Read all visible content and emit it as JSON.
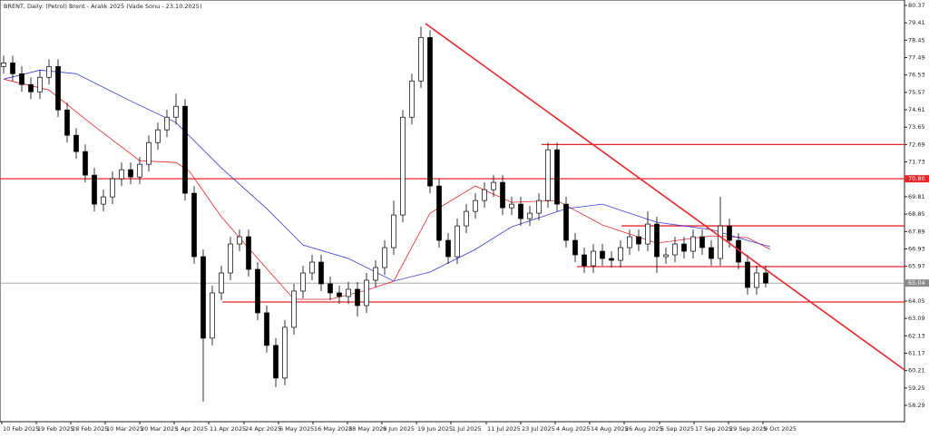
{
  "chart_data": {
    "type": "candlestick",
    "title": "BRENT, Daily: (Petrol) Brent - Aralık 2025 (Vade Sonu - 23.10.2025)",
    "xlim": [
      -0.4,
      99.3
    ],
    "ylim": [
      57.39,
      80.67
    ],
    "yticks": [
      80.37,
      79.41,
      78.45,
      77.49,
      76.53,
      75.57,
      74.61,
      73.65,
      72.69,
      71.73,
      69.81,
      68.85,
      67.89,
      66.93,
      65.97,
      64.05,
      63.09,
      62.13,
      61.17,
      60.21,
      59.25,
      58.29
    ],
    "xticks": [
      {
        "value": -0.2,
        "label": "10 Feb 2025"
      },
      {
        "value": 3.6,
        "label": "19 Feb 2025"
      },
      {
        "value": 7.4,
        "label": "28 Feb 2025"
      },
      {
        "value": 11.2,
        "label": "10 Mar 2025"
      },
      {
        "value": 15,
        "label": "20 Mar 2025"
      },
      {
        "value": 18.8,
        "label": "1 Apr 2025"
      },
      {
        "value": 22.6,
        "label": "11 Apr 2025"
      },
      {
        "value": 26.5,
        "label": "24 Apr 2025"
      },
      {
        "value": 30.3,
        "label": "6 May 2025"
      },
      {
        "value": 34.1,
        "label": "16 May 2025"
      },
      {
        "value": 37.9,
        "label": "28 May 2025"
      },
      {
        "value": 41.7,
        "label": "9 Jun 2025"
      },
      {
        "value": 45.5,
        "label": "19 Jun 2025"
      },
      {
        "value": 49.3,
        "label": "1 Jul 2025"
      },
      {
        "value": 53.2,
        "label": "11 Jul 2025"
      },
      {
        "value": 57,
        "label": "23 Jul 2025"
      },
      {
        "value": 60.8,
        "label": "4 Aug 2025"
      },
      {
        "value": 64.6,
        "label": "14 Aug 2025"
      },
      {
        "value": 68.4,
        "label": "26 Aug 2025"
      },
      {
        "value": 72.3,
        "label": "5 Sep 2025"
      },
      {
        "value": 76.1,
        "label": "17 Sep 2025"
      },
      {
        "value": 79.9,
        "label": "29 Sep 2025"
      },
      {
        "value": 83.7,
        "label": "9 Oct 2025"
      }
    ],
    "candles": [
      [
        77.0,
        77.6,
        76.6,
        77.2
      ],
      [
        77.2,
        77.6,
        76.2,
        76.6
      ],
      [
        76.6,
        77.0,
        75.6,
        76.0
      ],
      [
        76.0,
        76.4,
        75.2,
        75.6
      ],
      [
        75.6,
        76.8,
        75.2,
        76.4
      ],
      [
        76.4,
        77.4,
        76.0,
        77.0
      ],
      [
        77.0,
        77.4,
        74.2,
        74.6
      ],
      [
        74.6,
        75.0,
        72.8,
        73.2
      ],
      [
        73.2,
        73.6,
        71.9,
        72.3
      ],
      [
        72.3,
        72.7,
        70.6,
        71.0
      ],
      [
        71.0,
        71.4,
        69.0,
        69.4
      ],
      [
        69.4,
        70.2,
        69.0,
        69.8
      ],
      [
        69.8,
        71.2,
        69.4,
        70.8
      ],
      [
        70.8,
        71.7,
        70.4,
        71.3
      ],
      [
        71.3,
        71.7,
        70.5,
        70.9
      ],
      [
        70.9,
        72.0,
        70.5,
        71.6
      ],
      [
        71.6,
        73.2,
        71.2,
        72.8
      ],
      [
        72.8,
        73.9,
        72.4,
        73.5
      ],
      [
        73.5,
        74.6,
        73.1,
        74.2
      ],
      [
        74.2,
        75.5,
        73.8,
        74.8
      ],
      [
        74.8,
        75.2,
        69.6,
        70.0
      ],
      [
        70.0,
        70.4,
        66.1,
        66.5
      ],
      [
        66.5,
        66.9,
        58.5,
        62.0
      ],
      [
        62.0,
        64.9,
        61.6,
        64.5
      ],
      [
        64.5,
        66.0,
        64.1,
        65.6
      ],
      [
        65.6,
        67.6,
        65.2,
        67.2
      ],
      [
        67.2,
        68.0,
        66.8,
        67.6
      ],
      [
        67.6,
        68.0,
        65.4,
        65.8
      ],
      [
        65.8,
        66.2,
        63.0,
        63.4
      ],
      [
        63.4,
        63.8,
        61.2,
        61.6
      ],
      [
        61.6,
        62.0,
        59.3,
        59.8
      ],
      [
        59.8,
        63.0,
        59.4,
        62.6
      ],
      [
        62.6,
        65.0,
        62.2,
        64.6
      ],
      [
        64.6,
        66.0,
        64.2,
        65.6
      ],
      [
        65.6,
        66.6,
        65.2,
        66.2
      ],
      [
        66.2,
        66.6,
        64.6,
        65.0
      ],
      [
        65.0,
        65.4,
        64.1,
        64.5
      ],
      [
        64.5,
        64.9,
        63.9,
        64.3
      ],
      [
        64.3,
        65.1,
        63.9,
        64.7
      ],
      [
        64.7,
        65.1,
        63.2,
        63.8
      ],
      [
        63.8,
        65.6,
        63.4,
        65.2
      ],
      [
        65.2,
        66.3,
        64.8,
        65.9
      ],
      [
        65.9,
        67.4,
        65.5,
        67.0
      ],
      [
        67.0,
        69.6,
        66.6,
        68.8
      ],
      [
        68.8,
        74.6,
        68.4,
        74.2
      ],
      [
        74.2,
        76.6,
        73.8,
        76.2
      ],
      [
        76.2,
        79.2,
        75.8,
        78.6
      ],
      [
        78.6,
        79.0,
        70.0,
        70.4
      ],
      [
        70.4,
        70.8,
        67.0,
        67.4
      ],
      [
        67.4,
        67.8,
        66.1,
        66.5
      ],
      [
        66.5,
        68.6,
        66.1,
        68.2
      ],
      [
        68.2,
        69.4,
        67.8,
        69.0
      ],
      [
        69.0,
        70.0,
        68.6,
        69.6
      ],
      [
        69.6,
        70.6,
        69.2,
        70.2
      ],
      [
        70.2,
        71.0,
        69.8,
        70.6
      ],
      [
        70.6,
        71.0,
        68.8,
        69.2
      ],
      [
        69.2,
        69.8,
        68.8,
        69.4
      ],
      [
        69.4,
        69.8,
        68.2,
        68.6
      ],
      [
        68.6,
        69.3,
        68.2,
        68.9
      ],
      [
        68.9,
        70.0,
        68.5,
        69.6
      ],
      [
        69.6,
        72.8,
        69.2,
        72.4
      ],
      [
        72.4,
        72.8,
        69.0,
        69.4
      ],
      [
        69.4,
        69.8,
        67.0,
        67.4
      ],
      [
        67.4,
        67.8,
        66.2,
        66.6
      ],
      [
        66.6,
        67.0,
        65.6,
        66.0
      ],
      [
        66.0,
        67.2,
        65.6,
        66.8
      ],
      [
        66.8,
        67.2,
        66.0,
        66.4
      ],
      [
        66.4,
        66.8,
        65.9,
        66.3
      ],
      [
        66.3,
        67.4,
        65.9,
        67.0
      ],
      [
        67.0,
        68.0,
        66.6,
        67.6
      ],
      [
        67.6,
        68.0,
        66.8,
        67.2
      ],
      [
        67.2,
        69.0,
        66.8,
        68.3
      ],
      [
        68.3,
        68.7,
        65.6,
        66.5
      ],
      [
        66.5,
        67.0,
        66.1,
        66.6
      ],
      [
        66.6,
        67.6,
        66.2,
        67.2
      ],
      [
        67.2,
        67.6,
        66.4,
        66.8
      ],
      [
        66.8,
        68.0,
        66.4,
        67.6
      ],
      [
        67.6,
        68.0,
        66.6,
        67.0
      ],
      [
        67.0,
        67.4,
        66.0,
        66.4
      ],
      [
        66.4,
        69.8,
        66.0,
        68.2
      ],
      [
        68.2,
        68.6,
        67.0,
        67.4
      ],
      [
        67.4,
        67.8,
        65.8,
        66.2
      ],
      [
        66.2,
        66.6,
        64.4,
        64.8
      ],
      [
        64.8,
        66.0,
        64.4,
        65.6
      ],
      [
        65.6,
        66.0,
        64.8,
        65.04
      ]
    ],
    "series": [
      {
        "color": "#e8262a",
        "x": [
          0,
          5,
          10,
          15,
          19,
          20.5,
          24,
          28,
          32,
          36,
          40,
          43,
          47,
          52,
          56,
          61,
          66,
          72,
          78,
          82,
          84.5
        ],
        "values": [
          76.3,
          75.7,
          73.7,
          71.8,
          71.7,
          71.2,
          68.7,
          66.4,
          64.15,
          64.15,
          64.65,
          65.15,
          68.9,
          70.4,
          69.5,
          69.6,
          68.25,
          67.25,
          67.65,
          67.55,
          66.9
        ]
      },
      {
        "color": "#3a3ad8",
        "x": [
          0,
          4,
          8,
          14,
          19,
          24,
          29,
          33,
          38,
          43,
          47,
          52,
          56,
          62,
          66,
          72,
          78,
          82,
          84.5
        ],
        "values": [
          76.3,
          76.8,
          76.6,
          75.1,
          73.9,
          71.4,
          69.15,
          67.15,
          66.4,
          65.15,
          65.65,
          66.9,
          68.15,
          69.15,
          69.4,
          68.4,
          68.0,
          67.4,
          67.05
        ]
      }
    ],
    "levels": [
      {
        "value": 72.69,
        "from": 59.3
      },
      {
        "value": 68.2,
        "from": 68.1
      },
      {
        "value": 65.95,
        "from": 63.2
      },
      {
        "value": 64.0,
        "from": 24.1
      }
    ],
    "resistance": {
      "value": 70.8,
      "label": "70.80",
      "color": "#e8262a"
    },
    "last_price": 65.04,
    "trendline": {
      "x": [
        46.5,
        99.3
      ],
      "values": [
        79.37,
        60.25
      ],
      "color": "#e8262a"
    }
  }
}
